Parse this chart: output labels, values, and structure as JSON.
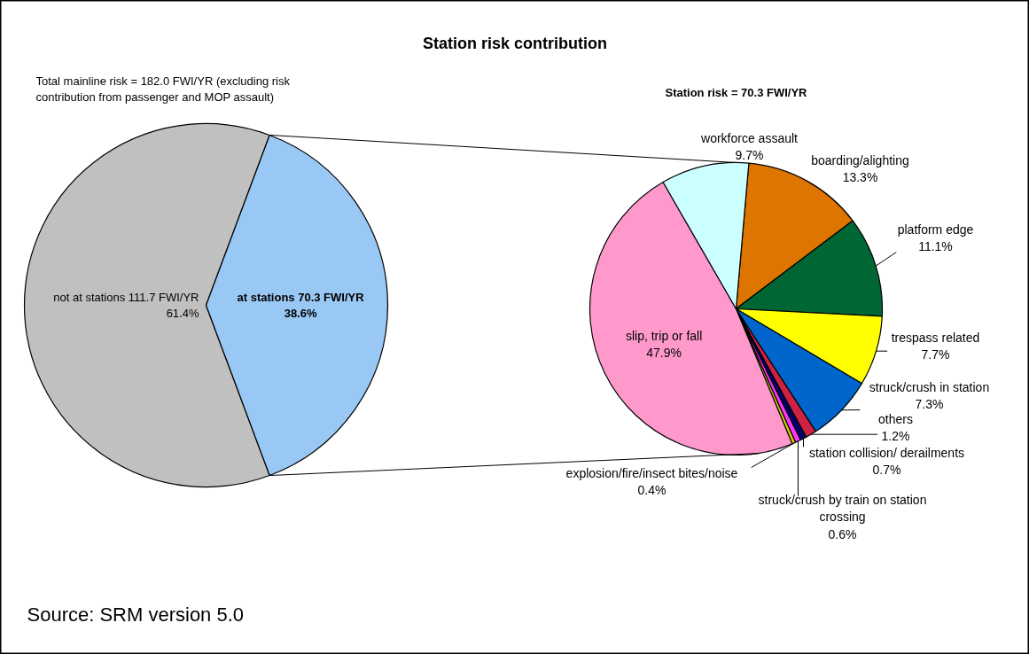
{
  "chart_data": [
    {
      "type": "pie",
      "title": "Station risk contribution",
      "subtitle": "Total mainline risk = 182.0 FWI/YR (excluding risk contribution from passenger and MOP assault)",
      "categories": [
        "not at stations",
        "at stations"
      ],
      "values": [
        111.7,
        70.3
      ],
      "value_labels": [
        "111.7 FWI/YR\n61.4%",
        "70.3 FWI/YR\n38.6%"
      ],
      "colors": [
        "#c0c0c0",
        "#99c8f4"
      ],
      "annotations": [
        "Source: SRM version 5.0"
      ]
    },
    {
      "type": "pie",
      "subtitle": "Station risk = 70.3 FWI/YR",
      "categories": [
        "boarding/alighting",
        "platform edge",
        "trespass related",
        "struck/crush in station",
        "others",
        "station collision/ derailments",
        "struck/crush by train on station crossing",
        "explosion/fire/insect bites/noise",
        "slip, trip or fall",
        "workforce assault"
      ],
      "values": [
        13.3,
        11.1,
        7.7,
        7.3,
        1.2,
        0.7,
        0.6,
        0.4,
        47.9,
        9.7
      ],
      "value_labels": [
        "13.3%",
        "11.1%",
        "7.7%",
        "7.3%",
        "1.2%",
        "0.7%",
        "0.6%",
        "0.4%",
        "47.9%",
        "9.7%"
      ],
      "colors": [
        "#dd7500",
        "#006633",
        "#ffff00",
        "#0066cc",
        "#cc2244",
        "#000066",
        "#ff33ff",
        "#cccc00",
        "#ff99cc",
        "#ccffff"
      ]
    }
  ]
}
